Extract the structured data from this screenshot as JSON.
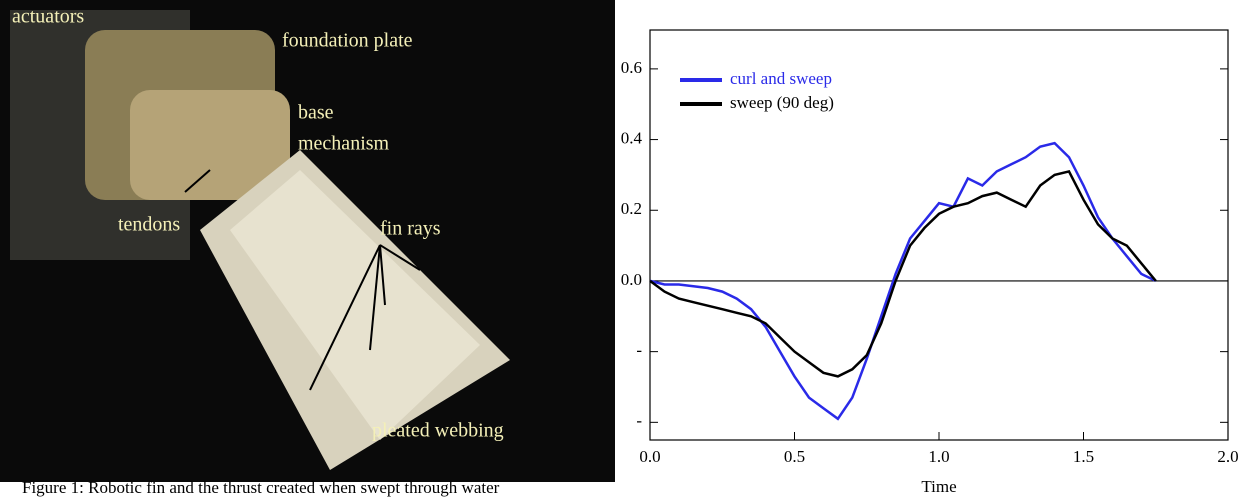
{
  "caption": "Figure 1: Robotic fin and the thrust created when swept through water",
  "photo": {
    "labels": [
      "actuators",
      "foundation plate",
      "base",
      "mechanism",
      "tendons",
      "fin rays",
      "pleated webbing"
    ]
  },
  "chart_data": {
    "type": "line",
    "xlabel": "Time",
    "x": [
      0,
      0.05,
      0.1,
      0.15,
      0.2,
      0.25,
      0.3,
      0.35,
      0.4,
      0.45,
      0.5,
      0.55,
      0.6,
      0.65,
      0.7,
      0.75,
      0.8,
      0.85,
      0.9,
      0.95,
      1.0,
      1.05,
      1.1,
      1.15,
      1.2,
      1.25,
      1.3,
      1.35,
      1.4,
      1.45,
      1.5,
      1.55,
      1.6,
      1.65,
      1.7,
      1.75
    ],
    "series": [
      {
        "name": "curl and sweep",
        "color": "#2a2ae8",
        "values": [
          0,
          -0.01,
          -0.01,
          -0.015,
          -0.02,
          -0.03,
          -0.05,
          -0.08,
          -0.13,
          -0.2,
          -0.27,
          -0.33,
          -0.36,
          -0.39,
          -0.33,
          -0.22,
          -0.1,
          0.02,
          0.12,
          0.17,
          0.22,
          0.21,
          0.29,
          0.27,
          0.31,
          0.33,
          0.35,
          0.38,
          0.39,
          0.35,
          0.27,
          0.18,
          0.12,
          0.07,
          0.02,
          0
        ]
      },
      {
        "name": "sweep (90 deg)",
        "color": "#000000",
        "values": [
          0,
          -0.03,
          -0.05,
          -0.06,
          -0.07,
          -0.08,
          -0.09,
          -0.1,
          -0.12,
          -0.16,
          -0.2,
          -0.23,
          -0.26,
          -0.27,
          -0.25,
          -0.21,
          -0.12,
          0,
          0.1,
          0.15,
          0.19,
          0.21,
          0.22,
          0.24,
          0.25,
          0.23,
          0.21,
          0.27,
          0.3,
          0.31,
          0.23,
          0.16,
          0.12,
          0.1,
          0.05,
          0
        ]
      }
    ],
    "xlim": [
      0,
      2
    ],
    "xticks": [
      {
        "value": 0,
        "label": "0.0"
      },
      0.5,
      {
        "value": 1,
        "label": "1.0"
      },
      1.5,
      {
        "value": 2,
        "label": "2.0"
      }
    ],
    "ylim": [
      -0.45,
      0.71
    ],
    "yticks": [
      {
        "value": -0.4,
        "label": "-"
      },
      {
        "value": -0.2,
        "label": "-"
      },
      {
        "value": 0,
        "label": "0.0"
      },
      0.2,
      0.4,
      0.6
    ],
    "legend": "upper left",
    "grid": false
  }
}
